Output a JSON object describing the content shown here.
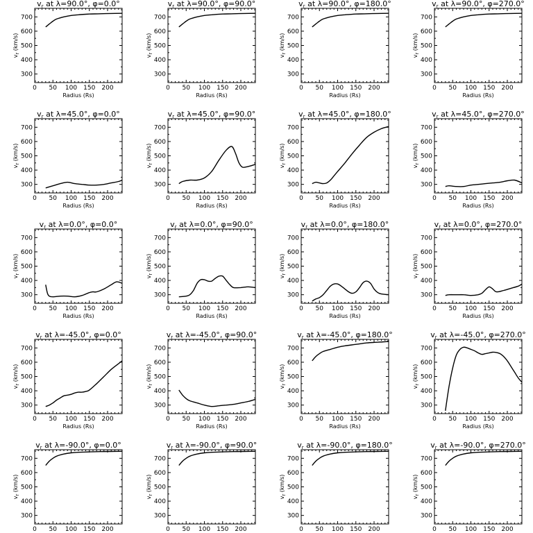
{
  "chart_data": {
    "type": "line",
    "layout": {
      "rows": 5,
      "cols": 4
    },
    "xlabel": "Radius (Rs)",
    "ylabel": "v_r (km/s)",
    "xlim": [
      0,
      240
    ],
    "ylim": [
      240,
      760
    ],
    "xticks": [
      0,
      50,
      100,
      150,
      200
    ],
    "yticks": [
      300,
      400,
      500,
      600,
      700
    ],
    "panels": [
      {
        "title": "v_r at λ=90.0°, φ=0.0°",
        "x": [
          30,
          40,
          50,
          60,
          80,
          100,
          120,
          150,
          180,
          210,
          240
        ],
        "y": [
          630,
          650,
          670,
          685,
          700,
          710,
          715,
          720,
          722,
          724,
          725
        ]
      },
      {
        "title": "v_r at λ=90.0°, φ=90.0°",
        "x": [
          30,
          40,
          50,
          60,
          80,
          100,
          120,
          150,
          180,
          210,
          240
        ],
        "y": [
          630,
          650,
          670,
          685,
          700,
          710,
          715,
          720,
          722,
          724,
          725
        ]
      },
      {
        "title": "v_r at λ=90.0°, φ=180.0°",
        "x": [
          30,
          40,
          50,
          60,
          80,
          100,
          120,
          150,
          180,
          210,
          240
        ],
        "y": [
          630,
          650,
          670,
          685,
          700,
          710,
          715,
          720,
          722,
          724,
          725
        ]
      },
      {
        "title": "v_r at λ=90.0°, φ=270.0°",
        "x": [
          30,
          40,
          50,
          60,
          80,
          100,
          120,
          150,
          180,
          210,
          240
        ],
        "y": [
          630,
          650,
          670,
          685,
          700,
          710,
          715,
          720,
          722,
          724,
          725
        ]
      },
      {
        "title": "v_r at λ=45.0°, φ=0.0°",
        "x": [
          30,
          50,
          70,
          90,
          110,
          130,
          150,
          170,
          190,
          210,
          230,
          240
        ],
        "y": [
          275,
          290,
          305,
          315,
          305,
          300,
          295,
          295,
          300,
          310,
          320,
          330
        ]
      },
      {
        "title": "v_r at λ=45.0°, φ=90.0°",
        "x": [
          30,
          40,
          60,
          80,
          100,
          120,
          140,
          160,
          175,
          185,
          195,
          205,
          220,
          240
        ],
        "y": [
          305,
          320,
          330,
          330,
          345,
          390,
          470,
          540,
          565,
          520,
          450,
          420,
          425,
          440
        ]
      },
      {
        "title": "v_r at λ=45.0°, φ=180.0°",
        "x": [
          30,
          40,
          50,
          60,
          70,
          80,
          90,
          100,
          120,
          140,
          160,
          180,
          200,
          220,
          240
        ],
        "y": [
          305,
          315,
          310,
          305,
          310,
          330,
          360,
          390,
          450,
          515,
          575,
          630,
          665,
          690,
          705
        ]
      },
      {
        "title": "v_r at λ=45.0°, φ=270.0°",
        "x": [
          30,
          40,
          60,
          80,
          100,
          120,
          140,
          160,
          180,
          200,
          220,
          240
        ],
        "y": [
          285,
          290,
          285,
          285,
          295,
          300,
          305,
          310,
          315,
          325,
          330,
          310
        ]
      },
      {
        "title": "v_r at λ=0.0°, φ=0.0°",
        "x": [
          30,
          35,
          40,
          50,
          70,
          90,
          110,
          130,
          150,
          160,
          170,
          190,
          210,
          225,
          240
        ],
        "y": [
          370,
          310,
          290,
          285,
          290,
          290,
          285,
          295,
          315,
          320,
          320,
          340,
          370,
          390,
          380
        ]
      },
      {
        "title": "v_r at λ=0.0°, φ=90.0°",
        "x": [
          30,
          50,
          60,
          70,
          80,
          90,
          100,
          110,
          120,
          130,
          140,
          150,
          160,
          170,
          180,
          200,
          220,
          240
        ],
        "y": [
          285,
          290,
          300,
          330,
          380,
          405,
          405,
          395,
          395,
          415,
          430,
          430,
          400,
          370,
          350,
          350,
          355,
          350
        ]
      },
      {
        "title": "v_r at λ=0.0°, φ=180.0°",
        "x": [
          30,
          40,
          50,
          60,
          70,
          80,
          90,
          100,
          110,
          120,
          130,
          140,
          150,
          160,
          170,
          180,
          190,
          200,
          210,
          220,
          240
        ],
        "y": [
          255,
          270,
          280,
          300,
          330,
          360,
          375,
          375,
          360,
          340,
          320,
          310,
          320,
          350,
          385,
          395,
          380,
          340,
          315,
          305,
          300
        ]
      },
      {
        "title": "v_r at λ=0.0°, φ=270.0°",
        "x": [
          30,
          40,
          60,
          80,
          100,
          120,
          130,
          140,
          150,
          160,
          170,
          190,
          210,
          230,
          240
        ],
        "y": [
          295,
          300,
          300,
          300,
          295,
          300,
          310,
          335,
          355,
          340,
          320,
          330,
          345,
          360,
          375
        ]
      },
      {
        "title": "v_r at λ=-45.0°, φ=0.0°",
        "x": [
          30,
          40,
          50,
          60,
          70,
          80,
          90,
          100,
          110,
          120,
          130,
          140,
          150,
          170,
          190,
          210,
          230,
          240
        ],
        "y": [
          290,
          300,
          315,
          335,
          350,
          365,
          370,
          375,
          385,
          390,
          390,
          395,
          405,
          450,
          500,
          550,
          590,
          610
        ]
      },
      {
        "title": "v_r at λ=-45.0°, φ=90.0°",
        "x": [
          30,
          40,
          50,
          60,
          80,
          100,
          120,
          140,
          160,
          180,
          200,
          220,
          240
        ],
        "y": [
          405,
          370,
          345,
          330,
          315,
          300,
          290,
          295,
          300,
          305,
          315,
          325,
          340
        ]
      },
      {
        "title": "v_r at λ=-45.0°, φ=180.0°",
        "x": [
          30,
          40,
          50,
          60,
          80,
          100,
          120,
          150,
          180,
          210,
          240
        ],
        "y": [
          610,
          640,
          660,
          675,
          690,
          705,
          715,
          725,
          735,
          740,
          745
        ]
      },
      {
        "title": "v_r at λ=-45.0°, φ=270.0°",
        "x": [
          30,
          40,
          50,
          60,
          70,
          80,
          90,
          100,
          110,
          120,
          130,
          140,
          150,
          160,
          170,
          180,
          190,
          200,
          210,
          220,
          230,
          240
        ],
        "y": [
          260,
          430,
          560,
          650,
          690,
          705,
          700,
          690,
          680,
          665,
          655,
          660,
          665,
          670,
          668,
          660,
          640,
          610,
          570,
          530,
          490,
          460
        ]
      },
      {
        "title": "v_r at λ=-90.0°, φ=0.0°",
        "x": [
          30,
          40,
          50,
          60,
          80,
          100,
          120,
          150,
          180,
          210,
          240
        ],
        "y": [
          650,
          680,
          700,
          715,
          730,
          738,
          742,
          745,
          747,
          748,
          749
        ]
      },
      {
        "title": "v_r at λ=-90.0°, φ=90.0°",
        "x": [
          30,
          40,
          50,
          60,
          80,
          100,
          120,
          150,
          180,
          210,
          240
        ],
        "y": [
          650,
          680,
          700,
          715,
          730,
          738,
          742,
          745,
          747,
          748,
          749
        ]
      },
      {
        "title": "v_r at λ=-90.0°, φ=180.0°",
        "x": [
          30,
          40,
          50,
          60,
          80,
          100,
          120,
          150,
          180,
          210,
          240
        ],
        "y": [
          650,
          680,
          700,
          715,
          730,
          738,
          742,
          745,
          747,
          748,
          749
        ]
      },
      {
        "title": "v_r at λ=-90.0°, φ=270.0°",
        "x": [
          30,
          40,
          50,
          60,
          80,
          100,
          120,
          150,
          180,
          210,
          240
        ],
        "y": [
          650,
          680,
          700,
          715,
          730,
          738,
          742,
          745,
          747,
          748,
          749
        ]
      }
    ]
  }
}
